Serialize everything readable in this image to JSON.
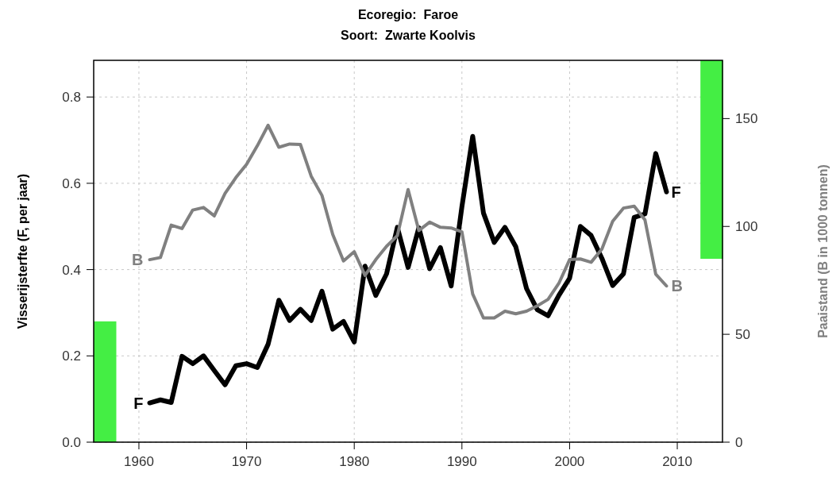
{
  "chart_data": {
    "type": "line",
    "title": "Ecoregio:  Faroe",
    "subtitle": "Soort:  Zwarte Koolvis",
    "ylabel": "Visserijsterfte (F, per jaar)",
    "y2label": "Paaistand (B in 1000 tonnen)",
    "xlim": [
      1955.8,
      2014.2
    ],
    "xticks": [
      1960,
      1970,
      1980,
      1990,
      2000,
      2010
    ],
    "ylim": [
      0,
      0.885
    ],
    "yticks": [
      {
        "value": 0,
        "label": "0.0"
      },
      0.2,
      0.4,
      0.6,
      0.8
    ],
    "y2lim": [
      0,
      177
    ],
    "y2ticks": [
      0,
      50,
      100,
      150
    ],
    "grid": true,
    "line_style": "solid",
    "marker": "none",
    "series": [
      {
        "name": "F",
        "color": "#000000",
        "x": [
          1961,
          1962,
          1963,
          1964,
          1965,
          1966,
          1967,
          1968,
          1969,
          1970,
          1971,
          1972,
          1973,
          1974,
          1975,
          1976,
          1977,
          1978,
          1979,
          1980,
          1981,
          1982,
          1983,
          1984,
          1985,
          1986,
          1987,
          1988,
          1989,
          1990,
          1991,
          1992,
          1993,
          1994,
          1995,
          1996,
          1997,
          1998,
          1999,
          2000,
          2001,
          2002,
          2003,
          2004,
          2005,
          2006,
          2007,
          2008,
          2009
        ],
        "values": [
          0.091,
          0.098,
          0.092,
          0.199,
          0.182,
          0.2,
          0.166,
          0.133,
          0.177,
          0.182,
          0.173,
          0.227,
          0.329,
          0.282,
          0.308,
          0.282,
          0.35,
          0.262,
          0.28,
          0.232,
          0.408,
          0.34,
          0.39,
          0.498,
          0.405,
          0.497,
          0.402,
          0.451,
          0.362,
          0.546,
          0.709,
          0.531,
          0.463,
          0.498,
          0.453,
          0.356,
          0.307,
          0.293,
          0.34,
          0.38,
          0.5,
          0.479,
          0.426,
          0.363,
          0.39,
          0.521,
          0.529,
          0.669,
          0.58
        ]
      },
      {
        "name": "B",
        "color": "#808080",
        "axis": "y2",
        "x": [
          1961,
          1962,
          1963,
          1964,
          1965,
          1966,
          1967,
          1968,
          1969,
          1970,
          1971,
          1972,
          1973,
          1974,
          1975,
          1976,
          1977,
          1978,
          1979,
          1980,
          1981,
          1982,
          1983,
          1984,
          1985,
          1986,
          1987,
          1988,
          1989,
          1990,
          1991,
          1992,
          1993,
          1994,
          1995,
          1996,
          1997,
          1998,
          1999,
          2000,
          2001,
          2002,
          2003,
          2004,
          2005,
          2006,
          2007,
          2008,
          2009
        ],
        "values": [
          84.6,
          85.6,
          100.6,
          99,
          107.6,
          108.8,
          104.9,
          115.3,
          122.6,
          128.8,
          137.4,
          146.9,
          136.7,
          138.2,
          138,
          123.3,
          114.4,
          96.3,
          84,
          88.3,
          77.3,
          84.6,
          90.8,
          95.7,
          117.1,
          98.1,
          102,
          99.6,
          99.3,
          97.5,
          68.7,
          57.6,
          57.6,
          60.7,
          59.5,
          60.7,
          63.2,
          66.2,
          73.6,
          84.6,
          84.9,
          83.4,
          89.5,
          102.4,
          108.5,
          109.4,
          103,
          77.9,
          72.4
        ]
      },
      {
        "type": "bar",
        "color": "#44ee44",
        "x": [
          1956.85
        ],
        "values": [
          0.28
        ]
      },
      {
        "type": "bar",
        "color": "#44ee44",
        "axis": "y2",
        "x": [
          2013.2
        ],
        "base": [
          85
        ],
        "values": [
          92
        ]
      }
    ]
  }
}
